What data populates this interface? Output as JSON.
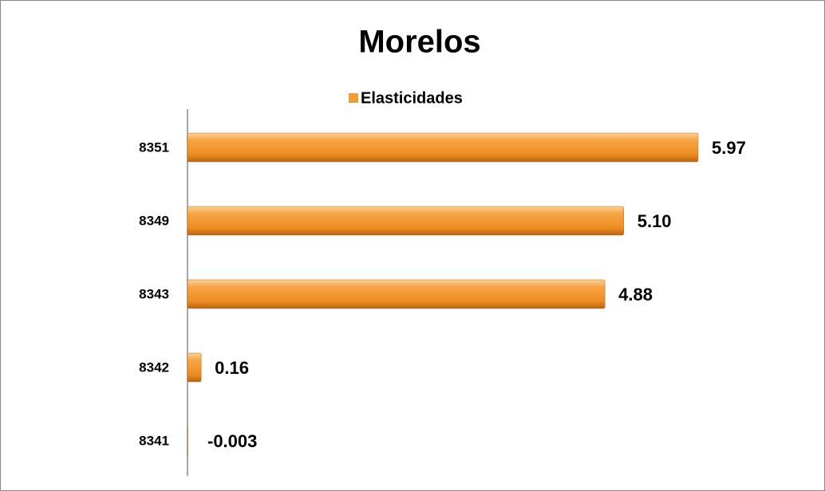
{
  "chart_data": {
    "type": "bar",
    "orientation": "horizontal",
    "title": "Morelos",
    "categories": [
      "8351",
      "8349",
      "8343",
      "8342",
      "8341"
    ],
    "series": [
      {
        "name": "Elasticidades",
        "color": "#f39c34",
        "values": [
          5.97,
          5.1,
          4.88,
          0.16,
          -0.003
        ],
        "value_labels": [
          "5.97",
          "5.10",
          "4.88",
          "0.16",
          "-0.003"
        ]
      }
    ],
    "legend": "top"
  }
}
